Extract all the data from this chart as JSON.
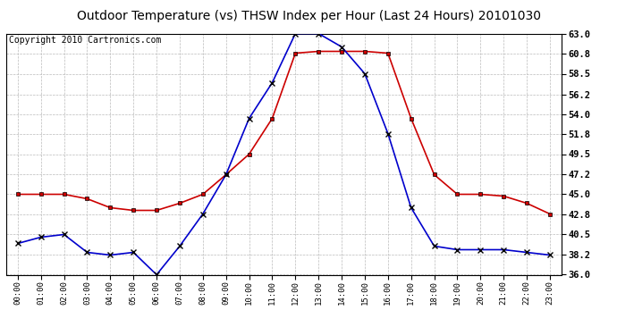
{
  "title": "Outdoor Temperature (vs) THSW Index per Hour (Last 24 Hours) 20101030",
  "copyright": "Copyright 2010 Cartronics.com",
  "hours": [
    "00:00",
    "01:00",
    "02:00",
    "03:00",
    "04:00",
    "05:00",
    "06:00",
    "07:00",
    "08:00",
    "09:00",
    "10:00",
    "11:00",
    "12:00",
    "13:00",
    "14:00",
    "15:00",
    "16:00",
    "17:00",
    "18:00",
    "19:00",
    "20:00",
    "21:00",
    "22:00",
    "23:00"
  ],
  "temp_red": [
    45.0,
    45.0,
    45.0,
    44.5,
    43.5,
    43.2,
    43.2,
    44.0,
    45.0,
    47.2,
    49.5,
    53.5,
    60.8,
    61.0,
    61.0,
    61.0,
    60.8,
    53.5,
    47.2,
    45.0,
    45.0,
    44.8,
    44.0,
    42.8
  ],
  "thsw_blue": [
    39.5,
    40.2,
    40.5,
    38.5,
    38.2,
    38.5,
    36.0,
    39.2,
    42.8,
    47.2,
    53.5,
    57.5,
    63.0,
    63.0,
    61.5,
    58.5,
    51.8,
    43.5,
    39.2,
    38.8,
    38.8,
    38.8,
    38.5,
    38.2
  ],
  "ylim": [
    36.0,
    63.0
  ],
  "yticks": [
    36.0,
    38.2,
    40.5,
    42.8,
    45.0,
    47.2,
    49.5,
    51.8,
    54.0,
    56.2,
    58.5,
    60.8,
    63.0
  ],
  "red_color": "#cc0000",
  "blue_color": "#0000cc",
  "bg_color": "#ffffff",
  "grid_color": "#bbbbbb",
  "title_fontsize": 10,
  "copyright_fontsize": 7
}
